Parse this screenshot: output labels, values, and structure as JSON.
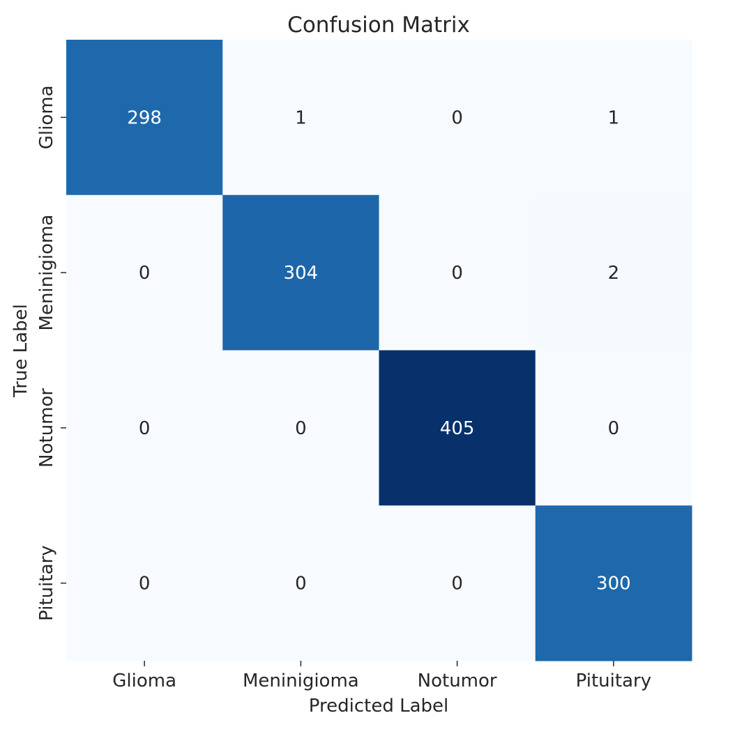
{
  "chart_data": {
    "type": "heatmap",
    "title": "Confusion Matrix",
    "xlabel": "Predicted Label",
    "ylabel": "True Label",
    "x_categories": [
      "Glioma",
      "Meninigioma",
      "Notumor",
      "Pituitary"
    ],
    "y_categories": [
      "Glioma",
      "Meninigioma",
      "Notumor",
      "Pituitary"
    ],
    "matrix": [
      [
        298,
        1,
        0,
        1
      ],
      [
        0,
        304,
        0,
        2
      ],
      [
        0,
        0,
        405,
        0
      ],
      [
        0,
        0,
        0,
        300
      ]
    ],
    "colormap": "Blues",
    "color_min": "#f7fbff",
    "color_mid": "#2171b5",
    "color_max": "#08306b",
    "colorbar": false,
    "grid": false
  }
}
